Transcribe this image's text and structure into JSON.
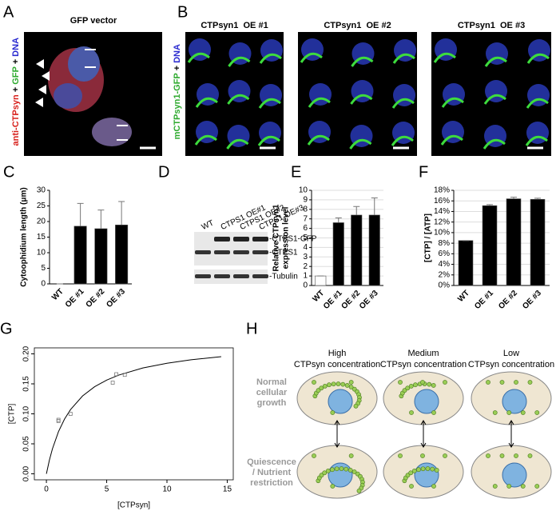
{
  "panel_a": {
    "letter": "A",
    "title": "GFP vector",
    "stain": [
      "anti-CTPsyn",
      " + ",
      "GFP",
      " + ",
      "DNA"
    ]
  },
  "panel_b": {
    "letter": "B",
    "stain": [
      "mCTPsyn1-GFP",
      " + ",
      "DNA"
    ],
    "titles": [
      "CTPsyn1  OE #1",
      "CTPsyn1  OE #2",
      "CTPsyn1  OE #3"
    ]
  },
  "panel_d": {
    "letter": "D",
    "lanes": [
      "WT",
      "CTPS1 OE#1",
      "CTPS1 OE#2",
      "CTPS1 OE#3"
    ],
    "bands": [
      "-CTPS1-GFP",
      "-CTPS1",
      "-Tubulin"
    ]
  },
  "panel_h": {
    "letter": "H",
    "columns": [
      [
        "High",
        "CTPsyn concentration"
      ],
      [
        "Medium",
        "CTPsyn concentration"
      ],
      [
        "Low",
        "CTPsyn concentration"
      ]
    ],
    "rows": [
      [
        "Normal",
        "cellular",
        "growth"
      ],
      [
        "Quiescence",
        "/ Nutrient",
        "restriction"
      ]
    ]
  },
  "chart_data": [
    {
      "type": "bar",
      "letter": "C",
      "ylabel": [
        "Cytoophidium length (μm)"
      ],
      "categories": [
        "WT",
        "OE #1",
        "OE #2",
        "OE #3"
      ],
      "values": [
        0,
        18.5,
        17.7,
        18.9
      ],
      "errors": [
        0,
        7.3,
        6.0,
        7.5
      ],
      "color": "#000000",
      "ylim": [
        0,
        30
      ],
      "yticks": [
        0,
        5,
        10,
        15,
        20,
        25,
        30
      ],
      "grid": false
    },
    {
      "type": "bar",
      "letter": "E",
      "ylabel": [
        "Relative CTPsyn1",
        "expression level"
      ],
      "categories": [
        "WT",
        "OE #1",
        "OE #2",
        "OE #3"
      ],
      "values": [
        1,
        6.6,
        7.4,
        7.4
      ],
      "errors": [
        0,
        0.5,
        0.9,
        1.8
      ],
      "colors": [
        "#ffffff",
        "#000000",
        "#000000",
        "#000000"
      ],
      "ylim": [
        0,
        10
      ],
      "yticks": [
        0,
        1,
        2,
        3,
        4,
        5,
        6,
        7,
        8,
        9,
        10
      ],
      "grid": true
    },
    {
      "type": "bar",
      "letter": "F",
      "ylabel": [
        "[CTP] / [ATP]"
      ],
      "categories": [
        "WT",
        "OE #1",
        "OE #2",
        "OE #3"
      ],
      "values": [
        8.5,
        15.1,
        16.4,
        16.3
      ],
      "errors": [
        0,
        0.2,
        0.3,
        0.2
      ],
      "color": "#000000",
      "ylim": [
        0,
        18
      ],
      "yticks": [
        {
          "value": 0,
          "label": "0%"
        },
        {
          "value": 2,
          "label": "2%"
        },
        {
          "value": 4,
          "label": "4%"
        },
        {
          "value": 6,
          "label": "6%"
        },
        {
          "value": 8,
          "label": "8%"
        },
        {
          "value": 10,
          "label": "10%"
        },
        {
          "value": 12,
          "label": "12%"
        },
        {
          "value": 14,
          "label": "14%"
        },
        {
          "value": 16,
          "label": "16%"
        },
        {
          "value": 18,
          "label": "18%"
        }
      ],
      "grid": true
    },
    {
      "type": "scatter",
      "letter": "G",
      "xlabel": "[CTPsyn]",
      "ylabel": "[CTP]",
      "points": {
        "x": [
          1,
          1,
          2,
          5.5,
          5.8,
          6.5
        ],
        "y": [
          0.088,
          0.09,
          0.1,
          0.152,
          0.166,
          0.165
        ]
      },
      "curve": {
        "x": [
          0,
          0.25,
          0.5,
          1,
          1.5,
          2,
          3,
          4,
          5,
          6,
          8,
          10,
          12,
          14.5
        ],
        "y": [
          0,
          0.023,
          0.0417,
          0.0703,
          0.0912,
          0.1071,
          0.1298,
          0.1452,
          0.1563,
          0.1646,
          0.1765,
          0.1844,
          0.1901,
          0.1954
        ]
      },
      "xlim": [
        -1,
        15.5
      ],
      "xticks": [
        0,
        5,
        10,
        15
      ],
      "ylim": [
        -0.01,
        0.21
      ],
      "yticks": [
        {
          "value": 0,
          "label": "0.00"
        },
        {
          "value": 0.05,
          "label": "0.05"
        },
        {
          "value": 0.1,
          "label": "0.10"
        },
        {
          "value": 0.15,
          "label": "0.15"
        },
        {
          "value": 0.2,
          "label": "0.20"
        }
      ]
    }
  ]
}
